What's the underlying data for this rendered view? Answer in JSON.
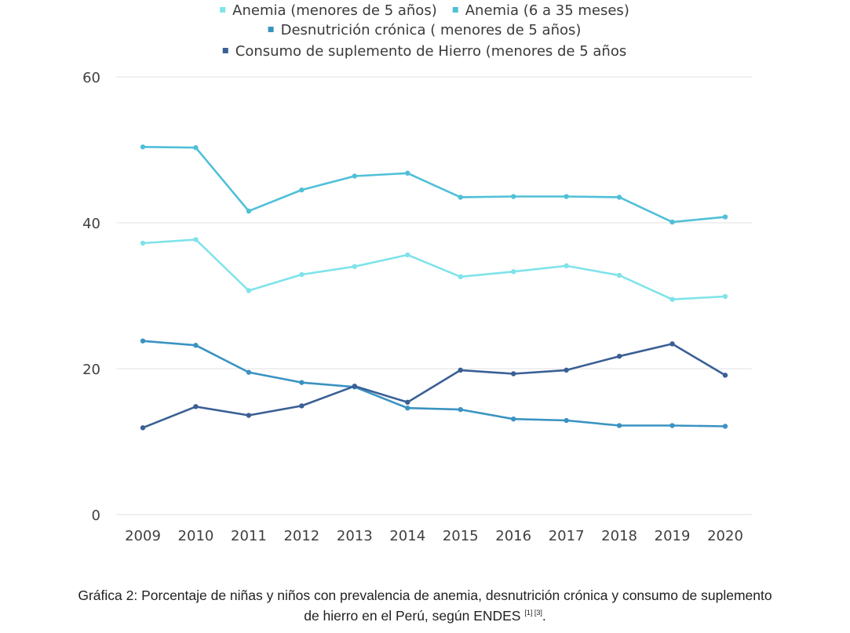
{
  "chart_data": {
    "type": "line",
    "x": [
      "2009",
      "2010",
      "2011",
      "2012",
      "2013",
      "2014",
      "2015",
      "2016",
      "2017",
      "2018",
      "2019",
      "2020"
    ],
    "ylim": [
      0,
      60
    ],
    "yticks": [
      0,
      20,
      40,
      60
    ],
    "grid": true,
    "legend_position": "top",
    "series": [
      {
        "name": "Anemia (menores de 5 años)",
        "color": "#7fe3ea",
        "values": [
          37.2,
          37.7,
          30.7,
          32.9,
          34.0,
          35.6,
          32.6,
          33.3,
          34.1,
          32.8,
          29.5,
          29.9
        ]
      },
      {
        "name": "Anemia (6 a 35 meses)",
        "color": "#4fc0d8",
        "values": [
          50.4,
          50.3,
          41.6,
          44.5,
          46.4,
          46.8,
          43.5,
          43.6,
          43.6,
          43.5,
          40.1,
          40.8
        ]
      },
      {
        "name": "Desnutrición crónica ( menores de 5 años)",
        "color": "#3a93c2",
        "values": [
          23.8,
          23.2,
          19.5,
          18.1,
          17.5,
          14.6,
          14.4,
          13.1,
          12.9,
          12.2,
          12.2,
          12.1
        ]
      },
      {
        "name": "Consumo de suplemento de Hierro (menores de 5 años",
        "color": "#3a5f95",
        "values": [
          11.9,
          14.8,
          13.6,
          14.9,
          17.6,
          15.4,
          19.8,
          19.3,
          19.8,
          21.7,
          23.4,
          19.1
        ]
      }
    ]
  },
  "caption": {
    "line1": "Gráfica 2: Porcentaje de niñas y niños con prevalencia de anemia, desnutrición crónica y consumo de suplemento",
    "line2": "de hierro en el Perú, según ENDES",
    "refs": "[1] [3]",
    "end": "."
  }
}
